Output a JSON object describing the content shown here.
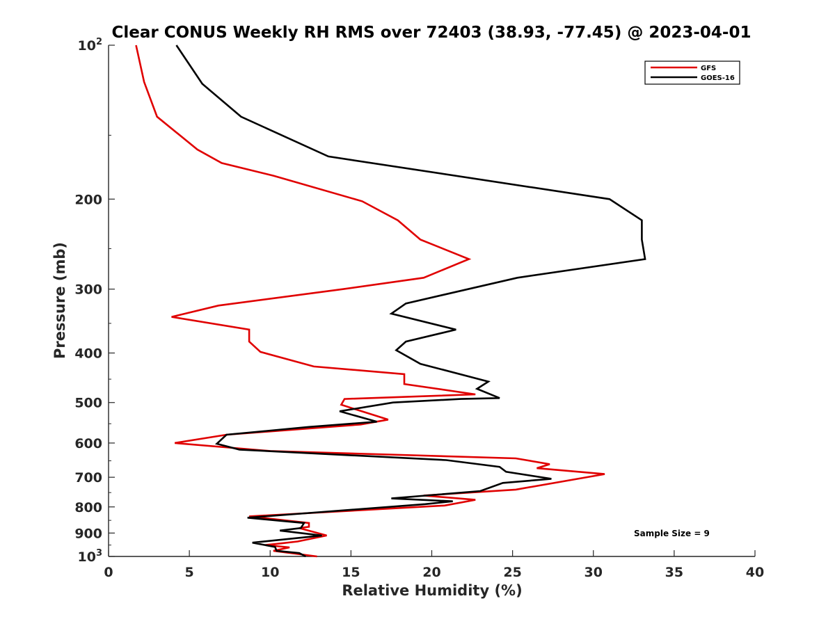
{
  "chart_data": {
    "type": "line",
    "title": "Clear CONUS Weekly RH RMS over 72403 (38.93, -77.45) @ 2023-04-01",
    "xlabel": "Relative Humidity (%)",
    "ylabel": "Pressure (mb)",
    "xlim": [
      0,
      40
    ],
    "ylim": [
      100,
      1000
    ],
    "y_scale": "log",
    "y_reversed": true,
    "grid": false,
    "legend_position": "top-right",
    "x_ticks": [
      "0",
      "5",
      "10",
      "15",
      "20",
      "25",
      "30",
      "35",
      "40"
    ],
    "y_ticks": [
      {
        "value": 100,
        "base": "10",
        "exp": "2"
      },
      {
        "value": 200,
        "label": "200"
      },
      {
        "value": 300,
        "label": "300"
      },
      {
        "value": 400,
        "label": "400"
      },
      {
        "value": 500,
        "label": "500"
      },
      {
        "value": 600,
        "label": "600"
      },
      {
        "value": 700,
        "label": "700"
      },
      {
        "value": 800,
        "label": "800"
      },
      {
        "value": 900,
        "label": "900"
      },
      {
        "value": 1000,
        "base": "10",
        "exp": "3"
      }
    ],
    "series": [
      {
        "name": "GFS",
        "color": "#e00000",
        "points": [
          [
            1.7,
            100
          ],
          [
            2.2,
            118
          ],
          [
            3.0,
            138
          ],
          [
            5.5,
            160
          ],
          [
            7.0,
            170
          ],
          [
            10.2,
            180
          ],
          [
            15.7,
            202
          ],
          [
            17.9,
            220
          ],
          [
            19.3,
            240
          ],
          [
            22.3,
            262
          ],
          [
            19.5,
            285
          ],
          [
            14.5,
            300
          ],
          [
            6.8,
            323
          ],
          [
            3.9,
            340
          ],
          [
            8.7,
            360
          ],
          [
            8.7,
            380
          ],
          [
            9.4,
            398
          ],
          [
            12.7,
            425
          ],
          [
            18.3,
            440
          ],
          [
            18.3,
            460
          ],
          [
            22.7,
            482
          ],
          [
            14.6,
            492
          ],
          [
            14.4,
            505
          ],
          [
            17.3,
            540
          ],
          [
            15.6,
            552
          ],
          [
            7.3,
            578
          ],
          [
            4.1,
            600
          ],
          [
            10.0,
            622
          ],
          [
            25.2,
            643
          ],
          [
            27.3,
            660
          ],
          [
            26.5,
            672
          ],
          [
            30.7,
            690
          ],
          [
            25.2,
            740
          ],
          [
            19.5,
            760
          ],
          [
            22.7,
            775
          ],
          [
            20.8,
            795
          ],
          [
            8.7,
            835
          ],
          [
            12.4,
            860
          ],
          [
            12.4,
            875
          ],
          [
            11.8,
            880
          ],
          [
            13.5,
            910
          ],
          [
            11.7,
            935
          ],
          [
            10.4,
            945
          ],
          [
            9.7,
            950
          ],
          [
            11.2,
            960
          ],
          [
            10.2,
            975
          ],
          [
            12.9,
            1000
          ]
        ]
      },
      {
        "name": "GOES-16",
        "color": "#000000",
        "points": [
          [
            4.2,
            100
          ],
          [
            5.8,
            119
          ],
          [
            8.2,
            138
          ],
          [
            13.6,
            165
          ],
          [
            31.0,
            200
          ],
          [
            33.0,
            220
          ],
          [
            33.0,
            240
          ],
          [
            33.2,
            262
          ],
          [
            25.3,
            285
          ],
          [
            18.4,
            320
          ],
          [
            17.5,
            335
          ],
          [
            21.5,
            360
          ],
          [
            18.4,
            380
          ],
          [
            17.8,
            395
          ],
          [
            19.3,
            420
          ],
          [
            23.5,
            455
          ],
          [
            22.8,
            470
          ],
          [
            24.2,
            490
          ],
          [
            21.8,
            492
          ],
          [
            17.6,
            500
          ],
          [
            14.3,
            520
          ],
          [
            16.6,
            545
          ],
          [
            12.4,
            558
          ],
          [
            7.3,
            578
          ],
          [
            6.7,
            602
          ],
          [
            8.1,
            618
          ],
          [
            20.9,
            648
          ],
          [
            24.2,
            668
          ],
          [
            24.6,
            683
          ],
          [
            27.4,
            705
          ],
          [
            24.4,
            718
          ],
          [
            23.0,
            745
          ],
          [
            17.5,
            770
          ],
          [
            21.3,
            780
          ],
          [
            19.6,
            790
          ],
          [
            8.6,
            840
          ],
          [
            12.1,
            860
          ],
          [
            11.9,
            880
          ],
          [
            10.6,
            890
          ],
          [
            13.2,
            910
          ],
          [
            8.9,
            940
          ],
          [
            10.3,
            958
          ],
          [
            10.4,
            975
          ],
          [
            11.8,
            985
          ],
          [
            12.2,
            1000
          ]
        ]
      }
    ],
    "annotations": [
      "Sample Size = 9"
    ]
  }
}
